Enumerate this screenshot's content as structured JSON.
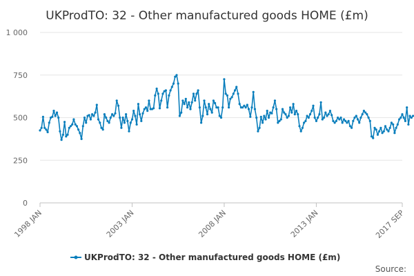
{
  "chart_data": {
    "type": "line",
    "title": "UKProdTO: 32 - Other manufactured goods HOME (£m)",
    "xlabel": "",
    "ylabel": "",
    "ylim": [
      0,
      1000
    ],
    "yticks": [
      0,
      250,
      500,
      750,
      1000
    ],
    "ytick_labels": [
      "0",
      "250",
      "500",
      "750",
      "1 000"
    ],
    "xlim": [
      0,
      236
    ],
    "xticks": [
      0,
      60,
      120,
      180,
      236
    ],
    "xtick_labels": [
      "1998 JAN",
      "2003 JAN",
      "2008 JAN",
      "2013 JAN",
      "2017 SEP"
    ],
    "grid": true,
    "legend": "bottom-center",
    "series": [
      {
        "name": "UKProdTO: 32 - Other manufactured goods HOME (£m)",
        "color": "#0a7ebc",
        "values": [
          425,
          440,
          505,
          440,
          430,
          415,
          470,
          500,
          505,
          540,
          510,
          530,
          500,
          420,
          370,
          400,
          475,
          390,
          400,
          440,
          450,
          460,
          490,
          460,
          450,
          430,
          410,
          375,
          450,
          500,
          470,
          510,
          515,
          490,
          520,
          510,
          530,
          575,
          490,
          470,
          440,
          430,
          520,
          500,
          480,
          470,
          500,
          520,
          510,
          525,
          600,
          570,
          500,
          440,
          500,
          470,
          520,
          480,
          420,
          470,
          490,
          540,
          510,
          460,
          580,
          520,
          480,
          525,
          550,
          560,
          540,
          600,
          550,
          550,
          555,
          630,
          670,
          640,
          555,
          600,
          640,
          655,
          660,
          560,
          630,
          660,
          680,
          700,
          740,
          750,
          700,
          510,
          530,
          600,
          580,
          610,
          560,
          590,
          550,
          590,
          640,
          600,
          640,
          660,
          560,
          470,
          510,
          600,
          560,
          520,
          580,
          550,
          530,
          600,
          585,
          560,
          560,
          510,
          500,
          560,
          725,
          640,
          630,
          560,
          610,
          620,
          640,
          660,
          680,
          640,
          580,
          560,
          560,
          570,
          560,
          575,
          550,
          505,
          560,
          650,
          550,
          500,
          420,
          440,
          505,
          470,
          510,
          490,
          540,
          500,
          530,
          525,
          560,
          600,
          550,
          470,
          480,
          490,
          550,
          530,
          520,
          500,
          510,
          560,
          530,
          580,
          520,
          540,
          520,
          450,
          420,
          440,
          470,
          480,
          510,
          500,
          520,
          540,
          570,
          500,
          480,
          500,
          520,
          590,
          490,
          500,
          530,
          510,
          520,
          540,
          515,
          480,
          470,
          480,
          500,
          490,
          500,
          470,
          490,
          480,
          470,
          480,
          450,
          440,
          480,
          500,
          510,
          490,
          470,
          500,
          520,
          540,
          530,
          520,
          500,
          480,
          390,
          380,
          440,
          430,
          400,
          420,
          440,
          410,
          420,
          450,
          430,
          420,
          440,
          470,
          460,
          410,
          440,
          460,
          490,
          500,
          520,
          500,
          480,
          560,
          460,
          510,
          500,
          510
        ]
      }
    ]
  },
  "legend": {
    "label": "UKProdTO: 32 - Other manufactured goods HOME (£m)"
  },
  "footer": {
    "source_label": "Source:"
  }
}
